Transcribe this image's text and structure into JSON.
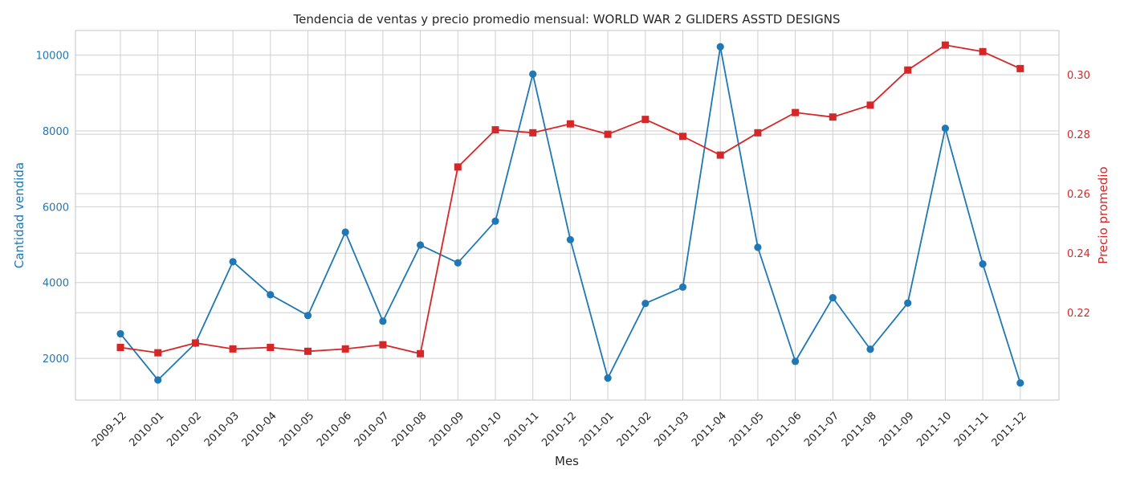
{
  "chart_data": {
    "type": "line",
    "title": "Tendencia de ventas y precio promedio mensual: WORLD WAR 2 GLIDERS ASSTD DESIGNS",
    "xlabel": "Mes",
    "ylabel_left": "Cantidad vendida",
    "ylabel_right": "Precio promedio",
    "categories": [
      "2009-12",
      "2010-01",
      "2010-02",
      "2010-03",
      "2010-04",
      "2010-05",
      "2010-06",
      "2010-07",
      "2010-08",
      "2010-09",
      "2010-10",
      "2010-11",
      "2010-12",
      "2011-01",
      "2011-02",
      "2011-03",
      "2011-04",
      "2011-05",
      "2011-06",
      "2011-07",
      "2011-08",
      "2011-09",
      "2011-10",
      "2011-11",
      "2011-12"
    ],
    "ylim_left": [
      900,
      10650
    ],
    "ylim_right": [
      0.1906,
      0.3149
    ],
    "yticks_left": [
      "2000",
      "4000",
      "6000",
      "8000",
      "10000"
    ],
    "yticks_right": [
      "0.22",
      "0.24",
      "0.26",
      "0.28",
      "0.30"
    ],
    "grid": true,
    "colors": {
      "quantity": "#1f77b4",
      "price": "#d62728",
      "grid": "#cfcfcf",
      "text": "#262626"
    },
    "series": [
      {
        "axis": "left",
        "marker": "circle",
        "values": [
          2650,
          1430,
          2400,
          4550,
          3680,
          3130,
          5330,
          2980,
          4990,
          4520,
          5620,
          9500,
          5130,
          1480,
          3450,
          3880,
          10220,
          4930,
          1920,
          3600,
          2240,
          3460,
          8070,
          4490,
          1350
        ]
      },
      {
        "axis": "right",
        "marker": "square",
        "values": [
          0.2083,
          0.2065,
          0.2098,
          0.2078,
          0.2083,
          0.207,
          0.2078,
          0.2092,
          0.2062,
          0.269,
          0.2815,
          0.2805,
          0.2835,
          0.28,
          0.285,
          0.2793,
          0.273,
          0.2805,
          0.2873,
          0.2858,
          0.2898,
          0.3016,
          0.31,
          0.3078,
          0.3021
        ]
      }
    ]
  }
}
